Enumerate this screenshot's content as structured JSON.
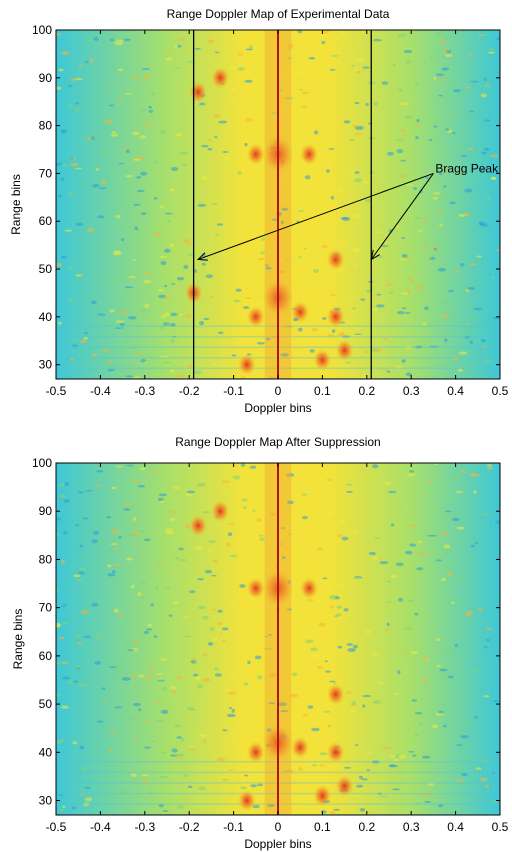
{
  "chart_data": [
    {
      "type": "heatmap",
      "title": "Range Doppler Map of Experimental Data",
      "xlabel": "Doppler bins",
      "ylabel": "Range bins",
      "xlim": [
        -0.5,
        0.5
      ],
      "ylim": [
        27,
        100
      ],
      "x_ticks": [
        "-0.5",
        "-0.4",
        "-0.3",
        "-0.2",
        "-0.1",
        "0",
        "0.1",
        "0.2",
        "0.3",
        "0.4",
        "0.5"
      ],
      "y_ticks": [
        "30",
        "40",
        "50",
        "60",
        "70",
        "80",
        "90",
        "100"
      ],
      "vertical_lines": [
        -0.19,
        0.0,
        0.21
      ],
      "hot_spots": [
        {
          "x": 0.0,
          "y": 74
        },
        {
          "x": 0.0,
          "y": 44
        },
        {
          "x": -0.19,
          "y": 45
        },
        {
          "x": -0.05,
          "y": 40
        },
        {
          "x": 0.05,
          "y": 41
        },
        {
          "x": 0.13,
          "y": 52
        },
        {
          "x": 0.13,
          "y": 40
        },
        {
          "x": -0.13,
          "y": 90
        },
        {
          "x": -0.18,
          "y": 87
        },
        {
          "x": -0.07,
          "y": 30
        },
        {
          "x": 0.1,
          "y": 31
        },
        {
          "x": 0.07,
          "y": 74
        },
        {
          "x": -0.05,
          "y": 74
        },
        {
          "x": 0.15,
          "y": 33
        }
      ],
      "annotations": [
        {
          "text": "Bragg Peak",
          "x": 0.35,
          "y": 71
        },
        {
          "arrow_from": [
            0.35,
            70
          ],
          "arrow_to": [
            -0.18,
            52
          ]
        },
        {
          "arrow_from": [
            0.35,
            70
          ],
          "arrow_to": [
            0.21,
            52
          ]
        }
      ]
    },
    {
      "type": "heatmap",
      "title": "Range Doppler Map After Suppression",
      "xlabel": "Doppler bins",
      "ylabel": "Range bins",
      "xlim": [
        -0.5,
        0.5
      ],
      "ylim": [
        27,
        100
      ],
      "x_ticks": [
        "-0.5",
        "-0.4",
        "-0.3",
        "-0.2",
        "-0.1",
        "0",
        "0.1",
        "0.2",
        "0.3",
        "0.4",
        "0.5"
      ],
      "y_ticks": [
        "30",
        "40",
        "50",
        "60",
        "70",
        "80",
        "90",
        "100"
      ],
      "vertical_lines": [
        0.0
      ],
      "hot_spots": [
        {
          "x": 0.0,
          "y": 74
        },
        {
          "x": 0.0,
          "y": 42
        },
        {
          "x": -0.05,
          "y": 40
        },
        {
          "x": 0.05,
          "y": 41
        },
        {
          "x": 0.13,
          "y": 52
        },
        {
          "x": 0.13,
          "y": 40
        },
        {
          "x": -0.13,
          "y": 90
        },
        {
          "x": -0.18,
          "y": 87
        },
        {
          "x": -0.07,
          "y": 30
        },
        {
          "x": 0.1,
          "y": 31
        },
        {
          "x": 0.07,
          "y": 74
        },
        {
          "x": -0.05,
          "y": 74
        },
        {
          "x": 0.15,
          "y": 33
        }
      ],
      "annotations": []
    }
  ],
  "colors": {
    "background_low": "#3ec8d6",
    "background_mid": "#a8e06a",
    "background_high": "#f2e23a",
    "hot": "#e2301e",
    "line": "#000000"
  }
}
